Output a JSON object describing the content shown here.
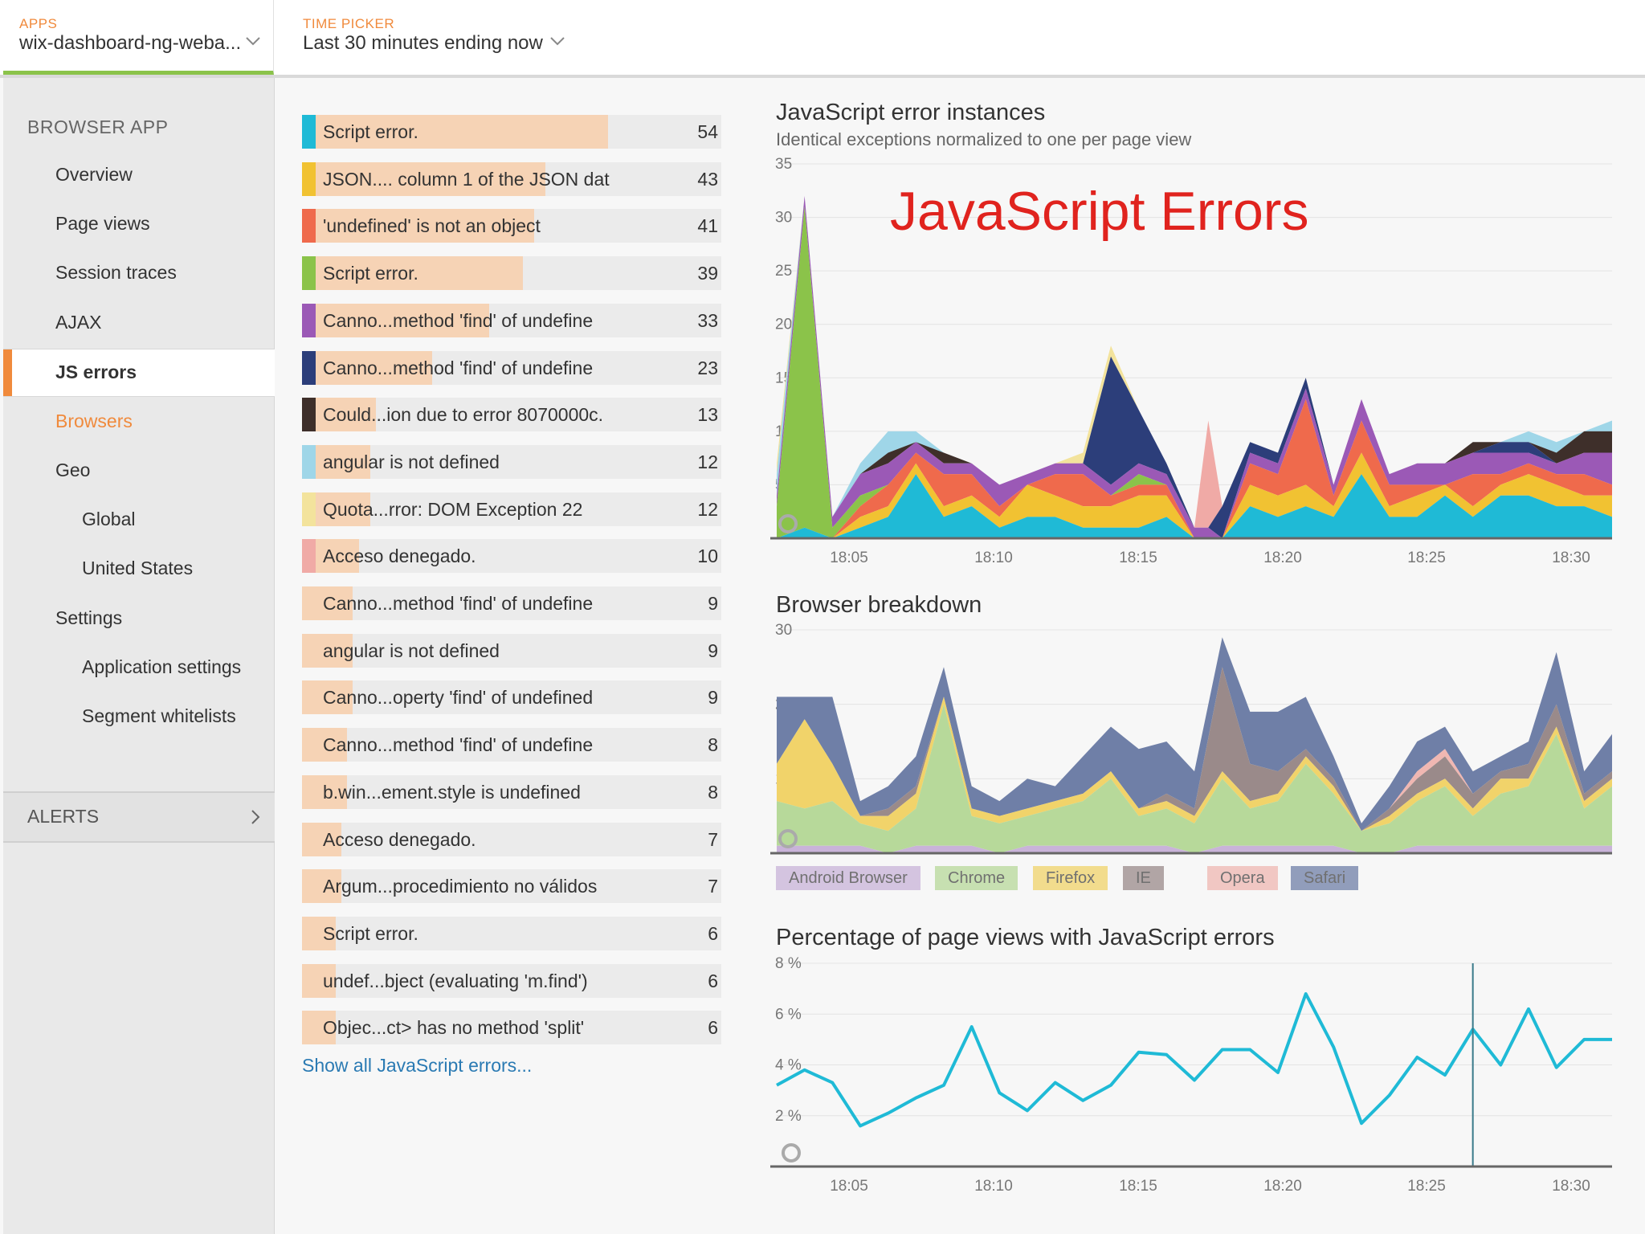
{
  "topbar": {
    "apps_label": "APPS",
    "apps_value": "wix-dashboard-ng-weba...",
    "time_label": "TIME PICKER",
    "time_value": "Last 30 minutes ending now"
  },
  "sidebar": {
    "header": "BROWSER APP",
    "items": [
      {
        "label": "Overview"
      },
      {
        "label": "Page views"
      },
      {
        "label": "Session traces"
      },
      {
        "label": "AJAX"
      },
      {
        "label": "JS errors"
      },
      {
        "label": "Browsers"
      },
      {
        "label": "Geo"
      },
      {
        "label": "Global"
      },
      {
        "label": "United States"
      },
      {
        "label": "Settings"
      },
      {
        "label": "Application settings"
      },
      {
        "label": "Segment whitelists"
      }
    ],
    "alerts_label": "ALERTS"
  },
  "errors": {
    "rows": [
      {
        "text": "Script error.",
        "count": 54,
        "color": "#1fbad6"
      },
      {
        "text": "JSON.... column 1 of the JSON dat",
        "count": 43,
        "color": "#f1c232"
      },
      {
        "text": "'undefined' is not an object",
        "count": 41,
        "color": "#ef6a4c"
      },
      {
        "text": "Script error.",
        "count": 39,
        "color": "#8bc34a"
      },
      {
        "text": "Canno...method 'find' of undefine",
        "count": 33,
        "color": "#9b59b6"
      },
      {
        "text": "Canno...method 'find' of undefine",
        "count": 23,
        "color": "#2c3e7a"
      },
      {
        "text": "Could...ion due to error 8070000c.",
        "count": 13,
        "color": "#3e2f2a"
      },
      {
        "text": "angular is not defined",
        "count": 12,
        "color": "#9fd6e8"
      },
      {
        "text": "Quota...rror: DOM Exception 22",
        "count": 12,
        "color": "#f3e39c"
      },
      {
        "text": "Acceso denegado.",
        "count": 10,
        "color": "#f0aaa6"
      },
      {
        "text": "Canno...method 'find' of undefine",
        "count": 9,
        "color": ""
      },
      {
        "text": "angular is not defined",
        "count": 9,
        "color": ""
      },
      {
        "text": "Canno...operty 'find' of undefined",
        "count": 9,
        "color": ""
      },
      {
        "text": "Canno...method 'find' of undefine",
        "count": 8,
        "color": ""
      },
      {
        "text": "b.win...ement.style is undefined",
        "count": 8,
        "color": ""
      },
      {
        "text": "Acceso denegado.",
        "count": 7,
        "color": ""
      },
      {
        "text": "Argum...procedimiento no válidos",
        "count": 7,
        "color": ""
      },
      {
        "text": "Script error.",
        "count": 6,
        "color": ""
      },
      {
        "text": "undef...bject (evaluating 'm.find')",
        "count": 6,
        "color": ""
      },
      {
        "text": "Objec...ct> has no method 'split'",
        "count": 6,
        "color": ""
      }
    ],
    "max_count": 74,
    "show_all": "Show all JavaScript errors..."
  },
  "overlay_title": "JavaScript Errors",
  "colors": {
    "accent": "#f08a3c",
    "link": "#2a7ab3",
    "line": "#1fbad6",
    "bar_fill": "#f6d3b5"
  },
  "chart_data": [
    {
      "type": "area",
      "title": "JavaScript error instances",
      "subtitle": "Identical exceptions normalized to one per page view",
      "x_ticks": [
        "18:05",
        "18:10",
        "18:15",
        "18:20",
        "18:25",
        "18:30"
      ],
      "x": [
        0,
        1,
        2,
        3,
        4,
        5,
        6,
        7,
        8,
        9,
        10,
        11,
        12,
        13,
        14,
        15,
        15.5,
        16,
        17,
        18,
        19,
        20,
        21,
        22,
        23,
        24,
        25,
        26,
        27,
        28,
        29,
        30
      ],
      "y_ticks": [
        5,
        10,
        15,
        20,
        25,
        30,
        35
      ],
      "ylim": [
        0,
        35
      ],
      "series": [
        {
          "name": "Script error. (54)",
          "color": "#1fbad6",
          "values": [
            0,
            1,
            0,
            1,
            2,
            6,
            2,
            3,
            1,
            2,
            2,
            1,
            1,
            1,
            2,
            0,
            0,
            0,
            3,
            2,
            3,
            2,
            6,
            2,
            2,
            4,
            2,
            4,
            4,
            3,
            3,
            2
          ]
        },
        {
          "name": "JSON.... column 1 of the JSON dat (43)",
          "color": "#f1c232",
          "values": [
            0,
            0,
            0,
            1,
            1,
            1,
            1,
            1,
            1,
            3,
            2,
            2,
            2,
            3,
            2,
            0,
            0,
            0,
            2,
            2,
            2,
            1,
            2,
            1,
            2,
            1,
            1,
            1,
            2,
            2,
            1,
            2
          ]
        },
        {
          "name": "'undefined' is not an object (41)",
          "color": "#ef6a4c",
          "values": [
            0,
            0,
            0,
            1,
            2,
            1,
            3,
            2,
            1,
            0,
            2,
            3,
            1,
            1,
            1,
            0,
            0,
            0,
            2,
            2,
            8,
            1,
            3,
            2,
            1,
            0,
            3,
            1,
            1,
            1,
            2,
            1
          ]
        },
        {
          "name": "Script error. (39)",
          "color": "#8bc34a",
          "values": [
            3,
            30,
            1,
            1,
            0,
            0,
            0,
            0,
            0,
            0,
            0,
            0,
            0,
            1,
            0,
            0,
            0,
            0,
            0,
            0,
            0,
            0,
            0,
            0,
            0,
            0,
            0,
            0,
            0,
            0,
            0,
            0
          ]
        },
        {
          "name": "Canno...method 'find' of undefine (33)",
          "color": "#9b59b6",
          "values": [
            1,
            1,
            1,
            2,
            2,
            1,
            1,
            1,
            2,
            1,
            1,
            1,
            1,
            1,
            1,
            1,
            1,
            0,
            1,
            1,
            1,
            1,
            2,
            1,
            2,
            2,
            2,
            2,
            1,
            1,
            2,
            3
          ]
        },
        {
          "name": "Canno...method 'find' of undefine (23)",
          "color": "#2c3e7a",
          "values": [
            0,
            0,
            0,
            0,
            0,
            0,
            0,
            0,
            0,
            0,
            0,
            0,
            12,
            5,
            1,
            0,
            0,
            3,
            1,
            1,
            1,
            0,
            0,
            0,
            0,
            0,
            0,
            1,
            1,
            0,
            0,
            0
          ]
        },
        {
          "name": "Could...ion due to error 8070000c. (13)",
          "color": "#3e2f2a",
          "values": [
            0,
            0,
            0,
            0,
            1,
            0,
            1,
            0,
            0,
            0,
            0,
            0,
            0,
            0,
            0,
            0,
            0,
            0,
            0,
            0,
            0,
            0,
            0,
            0,
            0,
            0,
            1,
            0,
            0,
            1,
            2,
            2
          ]
        },
        {
          "name": "angular is not defined (12)",
          "color": "#9fd6e8",
          "values": [
            2,
            0,
            0,
            1,
            2,
            1,
            0,
            0,
            0,
            0,
            0,
            0,
            0,
            0,
            0,
            0,
            0,
            0,
            0,
            0,
            0,
            0,
            0,
            0,
            0,
            0,
            0,
            0,
            1,
            1,
            0,
            1
          ]
        },
        {
          "name": "Quota...rror: DOM Exception 22 (12)",
          "color": "#f3e39c",
          "values": [
            1,
            0,
            0,
            0,
            0,
            0,
            0,
            0,
            0,
            0,
            0,
            1,
            1,
            0,
            0,
            0,
            0,
            0,
            0,
            0,
            0,
            0,
            0,
            0,
            0,
            0,
            0,
            0,
            0,
            0,
            0,
            0
          ]
        },
        {
          "name": "Acceso denegado. (10)",
          "color": "#f0aaa6",
          "values": [
            0,
            0,
            0,
            0,
            0,
            0,
            0,
            0,
            0,
            0,
            0,
            0,
            0,
            0,
            0,
            0,
            10,
            0,
            0,
            0,
            0,
            0,
            0,
            0,
            0,
            0,
            0,
            0,
            0,
            0,
            0,
            0
          ]
        }
      ]
    },
    {
      "type": "area",
      "title": "Browser breakdown",
      "x_ticks": [],
      "x": [
        0,
        1,
        2,
        3,
        4,
        5,
        6,
        7,
        8,
        9,
        10,
        11,
        12,
        13,
        14,
        15,
        16,
        17,
        18,
        19,
        20,
        21,
        22,
        23,
        24,
        25,
        26,
        27,
        28,
        29,
        30
      ],
      "y_ticks": [
        10,
        20,
        30
      ],
      "ylim": [
        0,
        30
      ],
      "series": [
        {
          "name": "Android Browser",
          "color": "#c9b3d9",
          "values": [
            1,
            1,
            1,
            1,
            0,
            1,
            1,
            1,
            0,
            1,
            1,
            1,
            1,
            1,
            1,
            0,
            1,
            1,
            1,
            1,
            1,
            0,
            0,
            1,
            1,
            1,
            1,
            1,
            1,
            1,
            1
          ]
        },
        {
          "name": "Chrome",
          "color": "#b7d99a",
          "values": [
            6,
            5,
            6,
            3,
            3,
            5,
            19,
            4,
            4,
            4,
            5,
            6,
            9,
            4,
            5,
            4,
            9,
            5,
            6,
            11,
            7,
            3,
            4,
            6,
            8,
            4,
            7,
            8,
            15,
            5,
            8
          ]
        },
        {
          "name": "Firefox",
          "color": "#f1d36a",
          "values": [
            5,
            12,
            5,
            1,
            2,
            2,
            1,
            1,
            1,
            1,
            1,
            1,
            1,
            1,
            1,
            1,
            1,
            1,
            1,
            1,
            1,
            0,
            1,
            1,
            1,
            1,
            2,
            1,
            1,
            1,
            1
          ]
        },
        {
          "name": "IE",
          "color": "#9a8a8a",
          "values": [
            0,
            0,
            0,
            0,
            1,
            1,
            0,
            0,
            0,
            0,
            0,
            0,
            0,
            0,
            1,
            1,
            14,
            5,
            3,
            1,
            1,
            0,
            1,
            2,
            3,
            2,
            1,
            2,
            3,
            1,
            1
          ]
        },
        {
          "name": "Opera",
          "color": "#f0b7b2",
          "values": [
            0,
            0,
            0,
            0,
            0,
            0,
            0,
            0,
            0,
            0,
            0,
            0,
            0,
            0,
            0,
            0,
            0,
            0,
            0,
            0,
            0,
            0,
            0,
            1,
            1,
            0,
            0,
            0,
            0,
            0,
            0
          ]
        },
        {
          "name": "Safari",
          "color": "#6f7fa7",
          "values": [
            9,
            3,
            9,
            2,
            3,
            4,
            4,
            3,
            2,
            4,
            2,
            5,
            6,
            8,
            7,
            5,
            4,
            7,
            8,
            7,
            3,
            1,
            3,
            4,
            3,
            3,
            2,
            3,
            7,
            3,
            5
          ]
        }
      ]
    },
    {
      "type": "line",
      "title": "Percentage of page views with JavaScript errors",
      "x_ticks": [
        "18:05",
        "18:10",
        "18:15",
        "18:20",
        "18:25",
        "18:30"
      ],
      "x": [
        0,
        1,
        2,
        3,
        4,
        5,
        6,
        7,
        8,
        9,
        10,
        11,
        12,
        13,
        14,
        15,
        16,
        17,
        18,
        19,
        20,
        21,
        22,
        23,
        24,
        25,
        26,
        27,
        28,
        29,
        30
      ],
      "y_ticks": [
        "2 %",
        "4 %",
        "6 %",
        "8 %"
      ],
      "ylim": [
        0,
        8
      ],
      "series": [
        {
          "name": "Percentage of page views with JavaScript errors",
          "color": "#1fbad6",
          "values": [
            3.2,
            3.8,
            3.3,
            1.6,
            2.1,
            2.7,
            3.2,
            5.5,
            2.9,
            2.2,
            3.3,
            2.6,
            3.2,
            4.5,
            4.4,
            3.4,
            4.6,
            4.6,
            3.7,
            6.8,
            4.7,
            1.7,
            2.8,
            4.3,
            3.6,
            5.4,
            4.0,
            6.2,
            3.9,
            5.0,
            5.0
          ]
        }
      ],
      "marker_x": 25
    }
  ]
}
